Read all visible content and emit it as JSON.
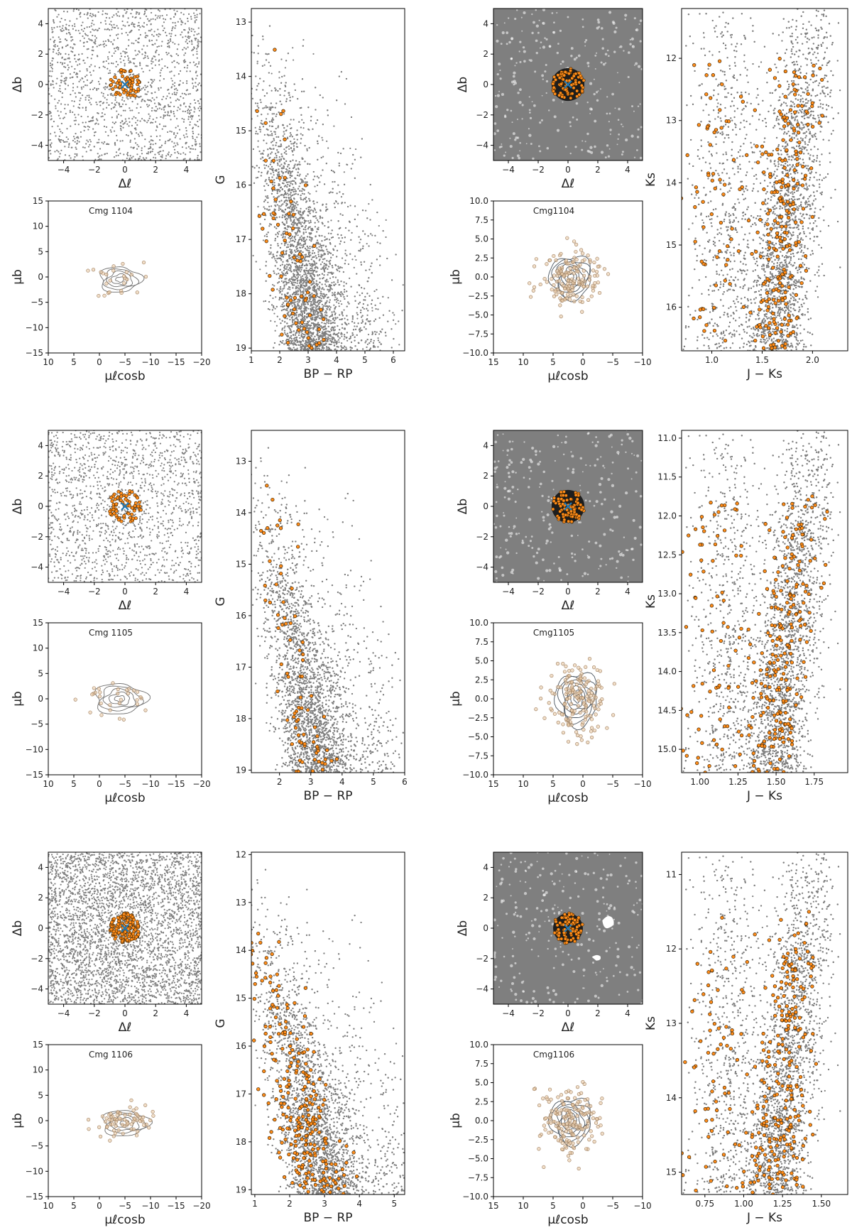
{
  "colors": {
    "field": "#7f7f7f",
    "member_fill": "#ff8c1a",
    "member_edge": "#3a2200",
    "pm_member": "#e8c8a4",
    "pm_edge": "#9a7a5a",
    "center_marker": "#1f77b4",
    "contour": "#6e6e6e",
    "contour_dark": "#4a5560"
  },
  "chart_data": [
    {
      "id": "r1-pos-gaia",
      "type": "scatter",
      "xlabel": "Δℓ",
      "ylabel": "Δb",
      "xlim": [
        -5,
        5
      ],
      "ylim": [
        -5,
        5
      ],
      "xticks": [
        -4,
        -2,
        0,
        2,
        4
      ],
      "yticks": [
        -4,
        -2,
        0,
        2,
        4
      ],
      "xtick_labels": [
        "−4",
        "−2",
        "0",
        "2",
        "4"
      ],
      "ytick_labels": [
        "−4",
        "−2",
        "0",
        "2",
        "4"
      ],
      "field_stars": "sparse grey points",
      "members": {
        "center": [
          0,
          0
        ],
        "radius": 1.0,
        "count": 60
      },
      "marker": "×",
      "grid": false
    },
    {
      "id": "r1-pm-gaia",
      "type": "scatter",
      "title": "Cmg 1104",
      "xlabel": "μℓcosb",
      "ylabel": "μb",
      "xlim": [
        10,
        -20
      ],
      "ylim": [
        -15,
        15
      ],
      "xticks": [
        10,
        5,
        0,
        -5,
        -10,
        -15,
        -20
      ],
      "yticks": [
        -15,
        -10,
        -5,
        0,
        5,
        10,
        15
      ],
      "xtick_labels": [
        "10",
        "5",
        "0",
        "−5",
        "−10",
        "−15",
        "−20"
      ],
      "ytick_labels": [
        "−15",
        "−10",
        "−5",
        "0",
        "5",
        "10",
        "15"
      ],
      "members": {
        "center": [
          -4,
          -0.5
        ],
        "spread": [
          4,
          2.5
        ],
        "count": 25
      },
      "contours": true
    },
    {
      "id": "r1-cmd-gaia",
      "type": "scatter",
      "xlabel": "BP − RP",
      "ylabel": "G",
      "xlim": [
        1,
        6.4
      ],
      "ylim": [
        19.05,
        12.75
      ],
      "xticks": [
        1,
        2,
        3,
        4,
        5,
        6
      ],
      "yticks": [
        13,
        14,
        15,
        16,
        17,
        18,
        19
      ],
      "xtick_labels": [
        "1",
        "2",
        "3",
        "4",
        "5",
        "6"
      ],
      "ytick_labels": [
        "13",
        "14",
        "15",
        "16",
        "17",
        "18",
        "19"
      ],
      "members": {
        "count": 70
      }
    },
    {
      "id": "r1-pos-2mass",
      "type": "scatter",
      "xlabel": "Δℓ",
      "ylabel": "Δb",
      "xlim": [
        -5,
        5
      ],
      "ylim": [
        -5,
        5
      ],
      "xticks": [
        -4,
        -2,
        0,
        2,
        4
      ],
      "yticks": [
        -4,
        -2,
        0,
        2,
        4
      ],
      "xtick_labels": [
        "−4",
        "−2",
        "0",
        "2",
        "4"
      ],
      "ytick_labels": [
        "−4",
        "−2",
        "0",
        "2",
        "4"
      ],
      "field_stars": "dense grey field",
      "members": {
        "center": [
          0,
          0
        ],
        "radius": 1.1,
        "count": 80
      },
      "marker": "×"
    },
    {
      "id": "r1-pm-2mass",
      "type": "scatter",
      "title": "Cmg1104",
      "xlabel": "μℓcosb",
      "ylabel": "μb",
      "xlim": [
        15,
        -10
      ],
      "ylim": [
        -10,
        10
      ],
      "xticks": [
        15,
        10,
        5,
        0,
        -5,
        -10
      ],
      "yticks": [
        -10,
        -7.5,
        -5,
        -2.5,
        0,
        2.5,
        5,
        7.5,
        10
      ],
      "xtick_labels": [
        "15",
        "10",
        "5",
        "0",
        "−5",
        "−10"
      ],
      "ytick_labels": [
        "−10.0",
        "−7.5",
        "−5.0",
        "−2.5",
        "0.0",
        "2.5",
        "5.0",
        "7.5",
        "10.0"
      ],
      "members": {
        "center": [
          2,
          0
        ],
        "spread": [
          3.5,
          2.8
        ],
        "count": 150
      },
      "contours": true
    },
    {
      "id": "r1-cmd-2mass",
      "type": "scatter",
      "xlabel": "J − Ks",
      "ylabel": "Ks",
      "xlim": [
        0.7,
        2.35
      ],
      "ylim": [
        16.7,
        11.2
      ],
      "xticks": [
        1.0,
        1.5,
        2.0
      ],
      "yticks": [
        12,
        13,
        14,
        15,
        16
      ],
      "xtick_labels": [
        "1.0",
        "1.5",
        "2.0"
      ],
      "ytick_labels": [
        "12",
        "13",
        "14",
        "15",
        "16"
      ],
      "members": {
        "count": 300
      }
    },
    {
      "id": "r2-pos-gaia",
      "type": "scatter",
      "xlabel": "Δℓ",
      "ylabel": "Δb",
      "xlim": [
        -5,
        5
      ],
      "ylim": [
        -5,
        5
      ],
      "xticks": [
        -4,
        -2,
        0,
        2,
        4
      ],
      "yticks": [
        -4,
        -2,
        0,
        2,
        4
      ],
      "xtick_labels": [
        "−4",
        "−2",
        "0",
        "2",
        "4"
      ],
      "ytick_labels": [
        "−4",
        "−2",
        "0",
        "2",
        "4"
      ],
      "field_stars": "sparse grey points",
      "members": {
        "center": [
          0,
          0
        ],
        "radius": 1.1,
        "count": 70
      },
      "marker": "×"
    },
    {
      "id": "r2-pm-gaia",
      "type": "scatter",
      "title": "Cmg 1105",
      "xlabel": "μℓcosb",
      "ylabel": "μb",
      "xlim": [
        10,
        -20
      ],
      "ylim": [
        -15,
        15
      ],
      "xticks": [
        10,
        5,
        0,
        -5,
        -10,
        -15,
        -20
      ],
      "yticks": [
        -15,
        -10,
        -5,
        0,
        5,
        10,
        15
      ],
      "xtick_labels": [
        "10",
        "5",
        "0",
        "−5",
        "−10",
        "−15",
        "−20"
      ],
      "ytick_labels": [
        "−15",
        "−10",
        "−5",
        "0",
        "5",
        "10",
        "15"
      ],
      "members": {
        "center": [
          -4,
          0
        ],
        "spread": [
          5,
          3
        ],
        "count": 30
      },
      "contours": true
    },
    {
      "id": "r2-cmd-gaia",
      "type": "scatter",
      "xlabel": "BP − RP",
      "ylabel": "G",
      "xlim": [
        1.1,
        6
      ],
      "ylim": [
        19.05,
        12.4
      ],
      "xticks": [
        2,
        3,
        4,
        5,
        6
      ],
      "yticks": [
        13,
        14,
        15,
        16,
        17,
        18,
        19
      ],
      "xtick_labels": [
        "2",
        "3",
        "4",
        "5",
        "6"
      ],
      "ytick_labels": [
        "13",
        "14",
        "15",
        "16",
        "17",
        "18",
        "19"
      ],
      "members": {
        "count": 80
      }
    },
    {
      "id": "r2-pos-2mass",
      "type": "scatter",
      "xlabel": "Δℓ",
      "ylabel": "Δb",
      "xlim": [
        -5,
        5
      ],
      "ylim": [
        -5,
        5
      ],
      "xticks": [
        -4,
        -2,
        0,
        2,
        4
      ],
      "yticks": [
        -4,
        -2,
        0,
        2,
        4
      ],
      "xtick_labels": [
        "−4",
        "−2",
        "0",
        "2",
        "4"
      ],
      "ytick_labels": [
        "−4",
        "−2",
        "0",
        "2",
        "4"
      ],
      "field_stars": "dense grey field",
      "members": {
        "center": [
          0,
          0
        ],
        "radius": 1.1,
        "count": 80
      },
      "marker": "×"
    },
    {
      "id": "r2-pm-2mass",
      "type": "scatter",
      "title": "Cmg1105",
      "xlabel": "μℓcosb",
      "ylabel": "μb",
      "xlim": [
        15,
        -10
      ],
      "ylim": [
        -10,
        10
      ],
      "xticks": [
        15,
        10,
        5,
        0,
        -5,
        -10
      ],
      "yticks": [
        -10,
        -7.5,
        -5,
        -2.5,
        0,
        2.5,
        5,
        7.5,
        10
      ],
      "xtick_labels": [
        "15",
        "10",
        "5",
        "0",
        "−5",
        "−10"
      ],
      "ytick_labels": [
        "−10.0",
        "−7.5",
        "−5.0",
        "−2.5",
        "0.0",
        "2.5",
        "5.0",
        "7.5",
        "10.0"
      ],
      "members": {
        "center": [
          1,
          0
        ],
        "spread": [
          3.5,
          3.5
        ],
        "count": 160
      },
      "contours": true
    },
    {
      "id": "r2-cmd-2mass",
      "type": "scatter",
      "xlabel": "J − Ks",
      "ylabel": "Ks",
      "xlim": [
        0.88,
        1.97
      ],
      "ylim": [
        15.3,
        10.9
      ],
      "xticks": [
        1.0,
        1.25,
        1.5,
        1.75
      ],
      "yticks": [
        11.0,
        11.5,
        12.0,
        12.5,
        13.0,
        13.5,
        14.0,
        14.5,
        15.0
      ],
      "xtick_labels": [
        "1.00",
        "1.25",
        "1.50",
        "1.75"
      ],
      "ytick_labels": [
        "11.0",
        "11.5",
        "12.0",
        "12.5",
        "13.0",
        "13.5",
        "14.0",
        "14.5",
        "15.0"
      ],
      "members": {
        "count": 300
      }
    },
    {
      "id": "r3-pos-gaia",
      "type": "scatter",
      "xlabel": "Δℓ",
      "ylabel": "Δb",
      "xlim": [
        -5,
        5
      ],
      "ylim": [
        -5,
        5
      ],
      "xticks": [
        -4,
        -2,
        0,
        2,
        4
      ],
      "yticks": [
        -4,
        -2,
        0,
        2,
        4
      ],
      "xtick_labels": [
        "−4",
        "−2",
        "0",
        "2",
        "4"
      ],
      "ytick_labels": [
        "−4",
        "−2",
        "0",
        "2",
        "4"
      ],
      "field_stars": "dense grey points",
      "members": {
        "center": [
          0,
          0
        ],
        "radius": 1.0,
        "count": 140
      },
      "marker": "×"
    },
    {
      "id": "r3-pm-gaia",
      "type": "scatter",
      "title": "Cmg 1106",
      "xlabel": "μℓcosb",
      "ylabel": "μb",
      "xlim": [
        10,
        -20
      ],
      "ylim": [
        -15,
        15
      ],
      "xticks": [
        10,
        5,
        0,
        -5,
        -10,
        -15,
        -20
      ],
      "yticks": [
        -15,
        -10,
        -5,
        0,
        5,
        10,
        15
      ],
      "xtick_labels": [
        "10",
        "5",
        "0",
        "−5",
        "−10",
        "−15",
        "−20"
      ],
      "ytick_labels": [
        "−15",
        "−10",
        "−5",
        "0",
        "5",
        "10",
        "15"
      ],
      "members": {
        "center": [
          -5,
          -0.5
        ],
        "spread": [
          4.5,
          2.5
        ],
        "count": 70
      },
      "contours": true
    },
    {
      "id": "r3-cmd-gaia",
      "type": "scatter",
      "xlabel": "BP − RP",
      "ylabel": "G",
      "xlim": [
        0.9,
        5.3
      ],
      "ylim": [
        19.1,
        11.95
      ],
      "xticks": [
        1,
        2,
        3,
        4,
        5
      ],
      "yticks": [
        12,
        13,
        14,
        15,
        16,
        17,
        18,
        19
      ],
      "xtick_labels": [
        "1",
        "2",
        "3",
        "4",
        "5"
      ],
      "ytick_labels": [
        "12",
        "13",
        "14",
        "15",
        "16",
        "17",
        "18",
        "19"
      ],
      "members": {
        "count": 260
      }
    },
    {
      "id": "r3-pos-2mass",
      "type": "scatter",
      "xlabel": "Δℓ",
      "ylabel": "Δb",
      "xlim": [
        -5,
        5
      ],
      "ylim": [
        -5,
        5
      ],
      "xticks": [
        -4,
        -2,
        0,
        2,
        4
      ],
      "yticks": [
        -4,
        -2,
        0,
        2,
        4
      ],
      "xtick_labels": [
        "−4",
        "−2",
        "0",
        "2",
        "4"
      ],
      "ytick_labels": [
        "−4",
        "−2",
        "0",
        "2",
        "4"
      ],
      "field_stars": "dense grey field with white gaps",
      "members": {
        "center": [
          0,
          0
        ],
        "radius": 1.0,
        "count": 80
      },
      "marker": "×"
    },
    {
      "id": "r3-pm-2mass",
      "type": "scatter",
      "title": "Cmg1106",
      "xlabel": "μℓcosb",
      "ylabel": "μb",
      "xlim": [
        15,
        -10
      ],
      "ylim": [
        -10,
        10
      ],
      "xticks": [
        15,
        10,
        5,
        0,
        -5,
        -10
      ],
      "yticks": [
        -10,
        -7.5,
        -5,
        -2.5,
        0,
        2.5,
        5,
        7.5,
        10
      ],
      "xtick_labels": [
        "15",
        "10",
        "5",
        "0",
        "−5",
        "−10"
      ],
      "ytick_labels": [
        "−10.0",
        "−7.5",
        "−5.0",
        "−2.5",
        "0.0",
        "2.5",
        "5.0",
        "7.5",
        "10.0"
      ],
      "members": {
        "center": [
          2,
          0
        ],
        "spread": [
          3.5,
          3
        ],
        "count": 170
      },
      "contours": true
    },
    {
      "id": "r3-cmd-2mass",
      "type": "scatter",
      "xlabel": "J − Ks",
      "ylabel": "Ks",
      "xlim": [
        0.6,
        1.67
      ],
      "ylim": [
        15.3,
        10.7
      ],
      "xticks": [
        0.75,
        1.0,
        1.25,
        1.5
      ],
      "yticks": [
        11,
        12,
        13,
        14,
        15
      ],
      "xtick_labels": [
        "0.75",
        "1.00",
        "1.25",
        "1.50"
      ],
      "ytick_labels": [
        "11",
        "12",
        "13",
        "14",
        "15"
      ],
      "members": {
        "count": 320
      }
    }
  ]
}
